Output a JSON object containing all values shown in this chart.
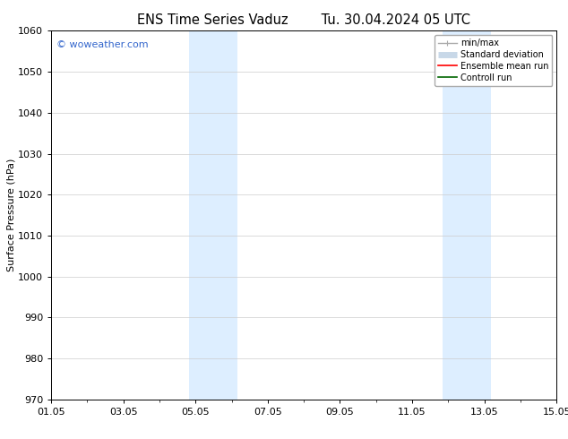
{
  "title_left": "ENS Time Series Vaduz",
  "title_right": "Tu. 30.04.2024 05 UTC",
  "ylabel": "Surface Pressure (hPa)",
  "ylim": [
    970,
    1060
  ],
  "yticks": [
    970,
    980,
    990,
    1000,
    1010,
    1020,
    1030,
    1040,
    1050,
    1060
  ],
  "xtick_labels": [
    "01.05",
    "03.05",
    "05.05",
    "07.05",
    "09.05",
    "11.05",
    "13.05",
    "15.05"
  ],
  "xtick_positions": [
    0,
    2,
    4,
    6,
    8,
    10,
    12,
    14
  ],
  "x_range": [
    0,
    14
  ],
  "shaded_bands": [
    {
      "x_start": 3.83,
      "x_end": 5.17,
      "color": "#ddeeff"
    },
    {
      "x_start": 10.83,
      "x_end": 12.17,
      "color": "#ddeeff"
    }
  ],
  "background_color": "#ffffff",
  "watermark_text": "© woweather.com",
  "watermark_color": "#3366cc",
  "legend_items": [
    {
      "label": "min/max",
      "color": "#aaaaaa",
      "lw": 1.0
    },
    {
      "label": "Standard deviation",
      "color": "#c8d8e8",
      "lw": 5
    },
    {
      "label": "Ensemble mean run",
      "color": "#ff0000",
      "lw": 1.2
    },
    {
      "label": "Controll run",
      "color": "#006600",
      "lw": 1.2
    }
  ],
  "grid_color": "#cccccc",
  "title_fontsize": 10.5,
  "axis_fontsize": 8,
  "tick_fontsize": 8,
  "legend_fontsize": 7
}
